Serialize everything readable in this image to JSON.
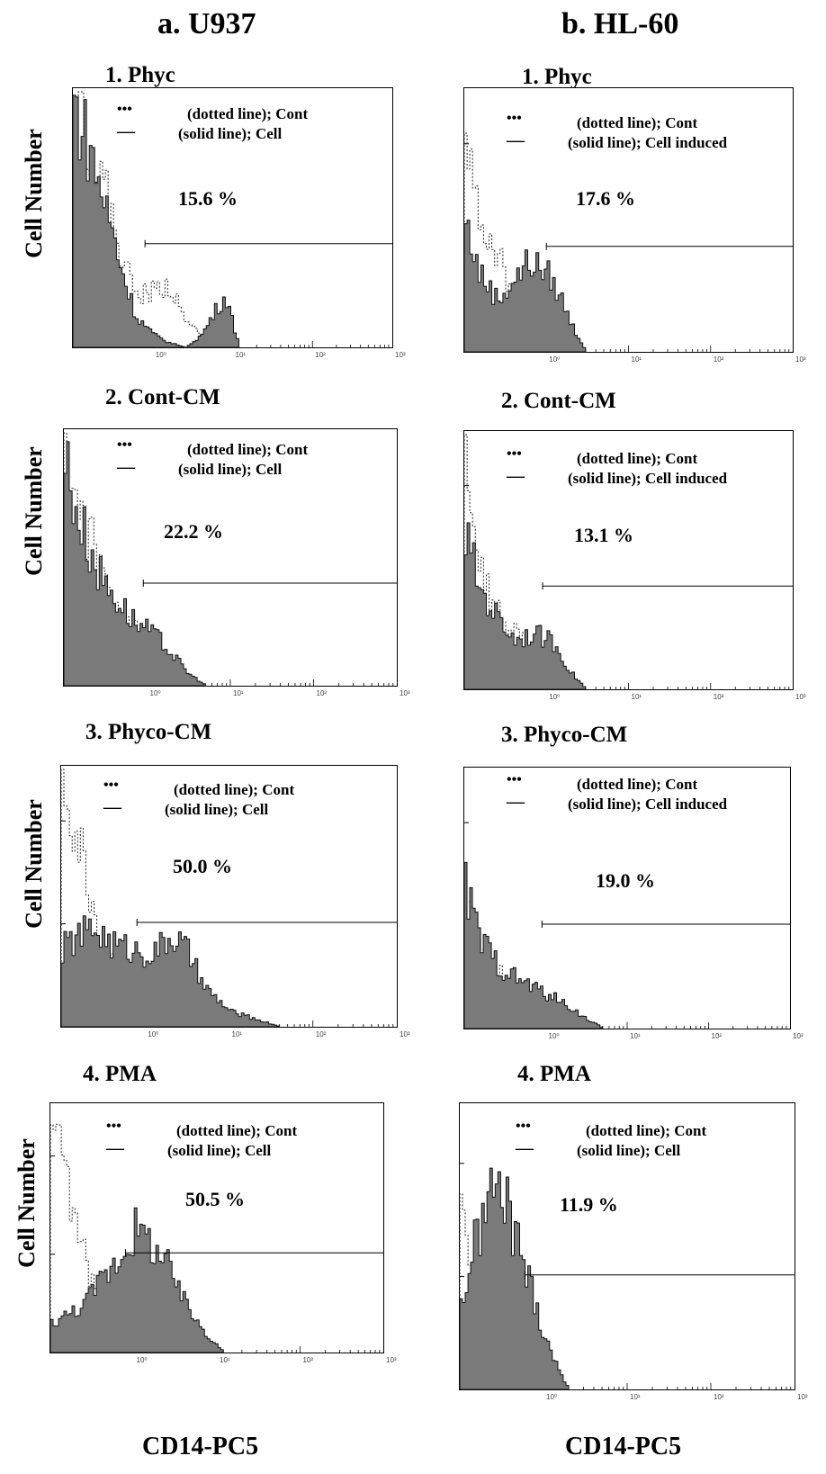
{
  "figure": {
    "columns": [
      {
        "title": "a. U937",
        "x_axis_label": "CD14-PC5"
      },
      {
        "title": "b. HL-60",
        "x_axis_label": "CD14-PC5"
      }
    ],
    "y_axis_label": "Cell Number",
    "legend_marker_dotted": "•••",
    "legend_marker_solid": "—"
  },
  "chart_data": [
    {
      "type": "area",
      "panel": "a1",
      "label": "1. Phyc",
      "legend": [
        "(dotted line); Cont",
        "(solid line); Cell"
      ],
      "percent": "15.6 %",
      "x_ticks": [
        "10⁰",
        "10¹",
        "10²",
        "10³"
      ],
      "x_scale": "log",
      "gate_start": 0.8,
      "series": [
        {
          "name": "(dotted line); Cont",
          "style": "dotted",
          "x": [
            0.1,
            0.15,
            0.25,
            0.4,
            0.6,
            1,
            1.5,
            2.5,
            4,
            6,
            10
          ],
          "y": [
            1.0,
            0.85,
            0.6,
            0.35,
            0.2,
            0.22,
            0.25,
            0.1,
            0.05,
            0.03,
            0.0
          ]
        },
        {
          "name": "(solid line); Cell",
          "style": "filled",
          "x": [
            0.1,
            0.15,
            0.25,
            0.4,
            0.6,
            1,
            1.5,
            2.5,
            4,
            6,
            8,
            10,
            12
          ],
          "y": [
            0.95,
            0.8,
            0.55,
            0.3,
            0.12,
            0.05,
            0.02,
            0.0,
            0.05,
            0.15,
            0.2,
            0.08,
            0.0
          ]
        }
      ]
    },
    {
      "type": "area",
      "panel": "b1",
      "label": "1. Phyc",
      "legend": [
        "(dotted line); Cont",
        "(solid line); Cell induced"
      ],
      "percent": "17.6 %",
      "x_ticks": [
        "10⁰",
        "10¹",
        "10²",
        "10³"
      ],
      "x_scale": "log",
      "gate_start": 1.0,
      "series": [
        {
          "name": "(dotted line); Cont",
          "style": "dotted",
          "x": [
            0.1,
            0.12,
            0.2,
            0.3,
            0.5,
            0.8,
            1.2,
            2,
            3
          ],
          "y": [
            1.0,
            0.6,
            0.45,
            0.3,
            0.2,
            0.12,
            0.08,
            0.02,
            0.0
          ]
        },
        {
          "name": "(solid line); Cell induced",
          "style": "filled",
          "x": [
            0.1,
            0.15,
            0.25,
            0.4,
            0.6,
            1,
            1.5,
            2,
            3
          ],
          "y": [
            0.5,
            0.3,
            0.2,
            0.28,
            0.35,
            0.3,
            0.2,
            0.1,
            0.0
          ]
        }
      ]
    },
    {
      "type": "area",
      "panel": "a2",
      "label": "2. Cont-CM",
      "legend": [
        "(dotted line); Cont",
        "(solid line); Cell"
      ],
      "percent": "22.2 %",
      "x_ticks": [
        "10⁰",
        "10¹",
        "10²",
        "10³"
      ],
      "x_scale": "log",
      "gate_start": 0.9,
      "series": [
        {
          "name": "(dotted line); Cont",
          "style": "dotted",
          "x": [
            0.1,
            0.15,
            0.25,
            0.4,
            0.7,
            1.2,
            2,
            3,
            5
          ],
          "y": [
            0.85,
            0.7,
            0.5,
            0.35,
            0.22,
            0.15,
            0.08,
            0.03,
            0.0
          ]
        },
        {
          "name": "(solid line); Cell",
          "style": "filled",
          "x": [
            0.1,
            0.15,
            0.25,
            0.4,
            0.7,
            1.2,
            2,
            3,
            5
          ],
          "y": [
            0.9,
            0.65,
            0.45,
            0.35,
            0.25,
            0.2,
            0.12,
            0.05,
            0.0
          ]
        }
      ]
    },
    {
      "type": "area",
      "panel": "b2",
      "label": "2. Cont-CM",
      "legend": [
        "(dotted line); Cont",
        "(solid line); Cell induced"
      ],
      "percent": "13.1 %",
      "x_ticks": [
        "10⁰",
        "10¹",
        "10²",
        "10³"
      ],
      "x_scale": "log",
      "gate_start": 0.9,
      "series": [
        {
          "name": "(dotted line); Cont",
          "style": "dotted",
          "x": [
            0.1,
            0.15,
            0.25,
            0.4,
            0.7,
            1.2,
            2,
            3
          ],
          "y": [
            0.95,
            0.45,
            0.3,
            0.22,
            0.15,
            0.1,
            0.04,
            0.0
          ]
        },
        {
          "name": "(solid line); Cell induced",
          "style": "filled",
          "x": [
            0.1,
            0.15,
            0.25,
            0.4,
            0.7,
            1.2,
            2,
            3
          ],
          "y": [
            0.6,
            0.4,
            0.28,
            0.2,
            0.22,
            0.18,
            0.06,
            0.0
          ]
        }
      ]
    },
    {
      "type": "area",
      "panel": "a3",
      "label": "3. Phyco-CM",
      "legend": [
        "(dotted line); Cont",
        "(solid line); Cell"
      ],
      "percent": "50.0 %",
      "x_ticks": [
        "10⁰",
        "10¹",
        "10²",
        "10³"
      ],
      "x_scale": "log",
      "gate_start": 0.8,
      "series": [
        {
          "name": "(dotted line); Cont",
          "style": "dotted",
          "x": [
            0.1,
            0.13,
            0.2,
            0.3,
            0.5,
            0.8,
            1.5,
            3,
            5
          ],
          "y": [
            0.95,
            0.8,
            0.55,
            0.3,
            0.2,
            0.18,
            0.15,
            0.05,
            0.0
          ]
        },
        {
          "name": "(solid line); Cell",
          "style": "filled",
          "x": [
            0.1,
            0.15,
            0.25,
            0.4,
            0.7,
            1.2,
            2,
            3,
            5,
            10,
            20,
            40
          ],
          "y": [
            0.3,
            0.35,
            0.38,
            0.32,
            0.3,
            0.28,
            0.35,
            0.3,
            0.15,
            0.06,
            0.03,
            0.0
          ]
        }
      ]
    },
    {
      "type": "area",
      "panel": "b3",
      "label": "3. Phyco-CM",
      "legend": [
        "(dotted line); Cont",
        "(solid line); Cell induced"
      ],
      "percent": "19.0 %",
      "x_ticks": [
        "10⁰",
        "10¹",
        "10²",
        "10³"
      ],
      "x_scale": "log",
      "gate_start": 0.9,
      "series": [
        {
          "name": "(dotted line); Cont",
          "style": "dotted",
          "x": [
            0.1,
            0.15,
            0.25,
            0.4,
            0.7,
            1.2,
            2
          ],
          "y": [
            0.55,
            0.3,
            0.22,
            0.18,
            0.12,
            0.05,
            0.0
          ]
        },
        {
          "name": "(solid line); Cell induced",
          "style": "filled",
          "x": [
            0.1,
            0.15,
            0.25,
            0.4,
            0.7,
            1.2,
            2,
            3,
            5
          ],
          "y": [
            0.55,
            0.35,
            0.25,
            0.2,
            0.16,
            0.12,
            0.08,
            0.04,
            0.0
          ]
        }
      ]
    },
    {
      "type": "area",
      "panel": "a4",
      "label": "4. PMA",
      "legend": [
        "(dotted line); Cont",
        "(solid line); Cell"
      ],
      "percent": "50.5 %",
      "x_ticks": [
        "10⁰",
        "10¹",
        "10²",
        "10³"
      ],
      "x_scale": "log",
      "gate_start": 0.8,
      "series": [
        {
          "name": "(dotted line); Cont",
          "style": "dotted",
          "x": [
            0.1,
            0.13,
            0.2,
            0.3,
            0.5,
            0.8,
            1.5,
            3,
            5
          ],
          "y": [
            0.95,
            0.75,
            0.5,
            0.3,
            0.2,
            0.15,
            0.1,
            0.04,
            0.0
          ]
        },
        {
          "name": "(solid line); Cell",
          "style": "filled",
          "x": [
            0.1,
            0.15,
            0.25,
            0.4,
            0.7,
            1,
            1.5,
            2.5,
            4,
            7,
            12
          ],
          "y": [
            0.12,
            0.15,
            0.2,
            0.3,
            0.4,
            0.5,
            0.45,
            0.35,
            0.2,
            0.08,
            0.0
          ]
        }
      ]
    },
    {
      "type": "area",
      "panel": "b4",
      "label": "4. PMA",
      "legend": [
        "(dotted line); Cont",
        "(solid line); Cell"
      ],
      "percent": "11.9 %",
      "x_ticks": [
        "10⁰",
        "10¹",
        "10²",
        "10³"
      ],
      "x_scale": "log",
      "gate_start": 0.6,
      "series": [
        {
          "name": "(dotted line); Cont",
          "style": "dotted",
          "x": [
            0.1,
            0.12,
            0.2,
            0.3,
            0.5,
            0.8,
            1.2,
            2
          ],
          "y": [
            0.75,
            0.4,
            0.25,
            0.18,
            0.15,
            0.1,
            0.05,
            0.0
          ]
        },
        {
          "name": "(solid line); Cell",
          "style": "filled",
          "x": [
            0.1,
            0.13,
            0.18,
            0.25,
            0.35,
            0.5,
            0.7,
            1,
            1.5,
            2
          ],
          "y": [
            0.3,
            0.45,
            0.6,
            0.72,
            0.65,
            0.5,
            0.35,
            0.2,
            0.06,
            0.0
          ]
        }
      ]
    }
  ]
}
